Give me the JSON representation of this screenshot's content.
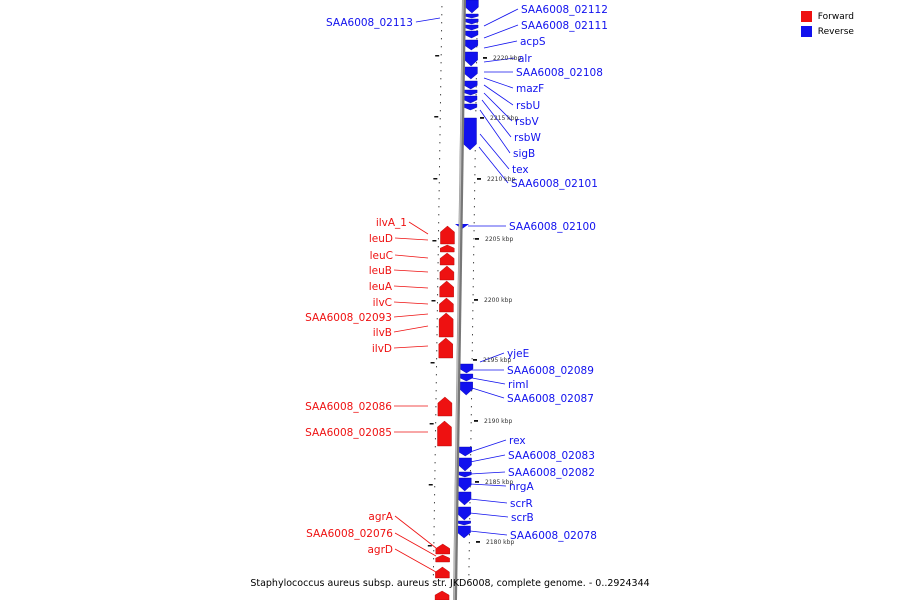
{
  "legend": {
    "forward": {
      "label": "Forward",
      "color": "#ee1111"
    },
    "reverse": {
      "label": "Reverse",
      "color": "#1111ee"
    }
  },
  "caption": "Staphylococcus aureus subsp. aureus str. JKD6008, complete genome. - 0..2924344",
  "axis": {
    "unit": "kbp",
    "ticks": [
      "2220 kbp",
      "2215 kbp",
      "2210 kbp",
      "2205 kbp",
      "2200 kbp",
      "2195 kbp",
      "2190 kbp",
      "2185 kbp",
      "2180 kbp"
    ]
  },
  "genes": {
    "reverse": [
      "SAA6008_02113",
      "SAA6008_02112",
      "SAA6008_02111",
      "acpS",
      "alr",
      "SAA6008_02108",
      "mazF",
      "rsbU",
      "rsbV",
      "rsbW",
      "sigB",
      "tex",
      "SAA6008_02101",
      "SAA6008_02100",
      "yjeE",
      "SAA6008_02089",
      "rimI",
      "SAA6008_02087",
      "rex",
      "SAA6008_02083",
      "SAA6008_02082",
      "nrgA",
      "scrR",
      "scrB",
      "SAA6008_02078"
    ],
    "forward": [
      "ilvA_1",
      "leuD",
      "leuC",
      "leuB",
      "leuA",
      "ilvC",
      "SAA6008_02093",
      "ilvB",
      "ilvD",
      "SAA6008_02086",
      "SAA6008_02085",
      "agrA",
      "SAA6008_02076",
      "agrD"
    ]
  }
}
